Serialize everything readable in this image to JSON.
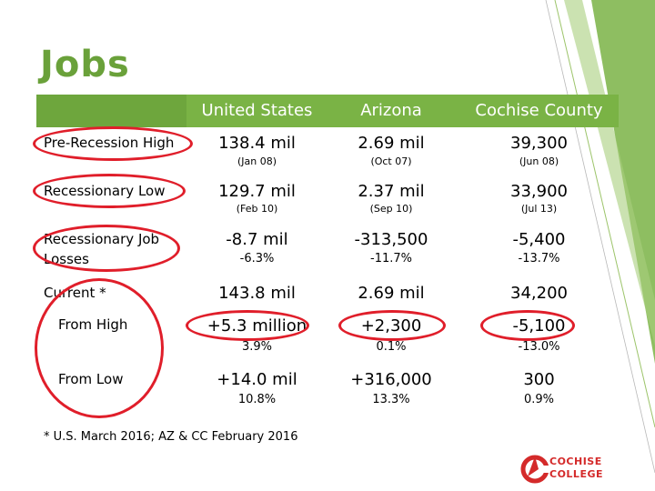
{
  "slide": {
    "title": "Jobs"
  },
  "header": {
    "col1": "United States",
    "col2": "Arizona",
    "col3": "Cochise County"
  },
  "rows": {
    "pre_recession_high": {
      "label": "Pre-Recession High",
      "us": {
        "value": "138.4 mil",
        "date": "(Jan 08)"
      },
      "az": {
        "value": "2.69 mil",
        "date": "(Oct 07)"
      },
      "cc": {
        "value": "39,300",
        "date": "(Jun 08)"
      }
    },
    "recessionary_low": {
      "label": "Recessionary Low",
      "us": {
        "value": "129.7 mil",
        "date": "(Feb 10)"
      },
      "az": {
        "value": "2.37 mil",
        "date": "(Sep 10)"
      },
      "cc": {
        "value": "33,900",
        "date": "(Jul 13)"
      }
    },
    "job_losses": {
      "label_line1": "Recessionary Job",
      "label_line2": "Losses",
      "us": {
        "value": "-8.7 mil",
        "pct": "-6.3%"
      },
      "az": {
        "value": "-313,500",
        "pct": "-11.7%"
      },
      "cc": {
        "value": "-5,400",
        "pct": "-13.7%"
      }
    },
    "current": {
      "label": "Current *",
      "us": {
        "value": "143.8 mil"
      },
      "az": {
        "value": "2.69 mil"
      },
      "cc": {
        "value": "34,200"
      }
    },
    "from_high": {
      "label": "From High",
      "us": {
        "value": "+5.3 million",
        "pct": "3.9%"
      },
      "az": {
        "value": "+2,300",
        "pct": "0.1%"
      },
      "cc": {
        "value": "-5,100",
        "pct": "-13.0%"
      }
    },
    "from_low": {
      "label": "From Low",
      "us": {
        "value": "+14.0 mil",
        "pct": "10.8%"
      },
      "az": {
        "value": "+316,000",
        "pct": "13.3%"
      },
      "cc": {
        "value": "300",
        "pct": "0.9%"
      }
    }
  },
  "footnote": "* U.S. March 2016; AZ & CC February 2016",
  "logo": {
    "line1": "COCHISE",
    "line2": "COLLEGE"
  },
  "colors": {
    "accent_green": "#7ab345",
    "title_green": "#6aa13a",
    "oval_red": "#e01e2a",
    "logo_red": "#d42a2a"
  }
}
